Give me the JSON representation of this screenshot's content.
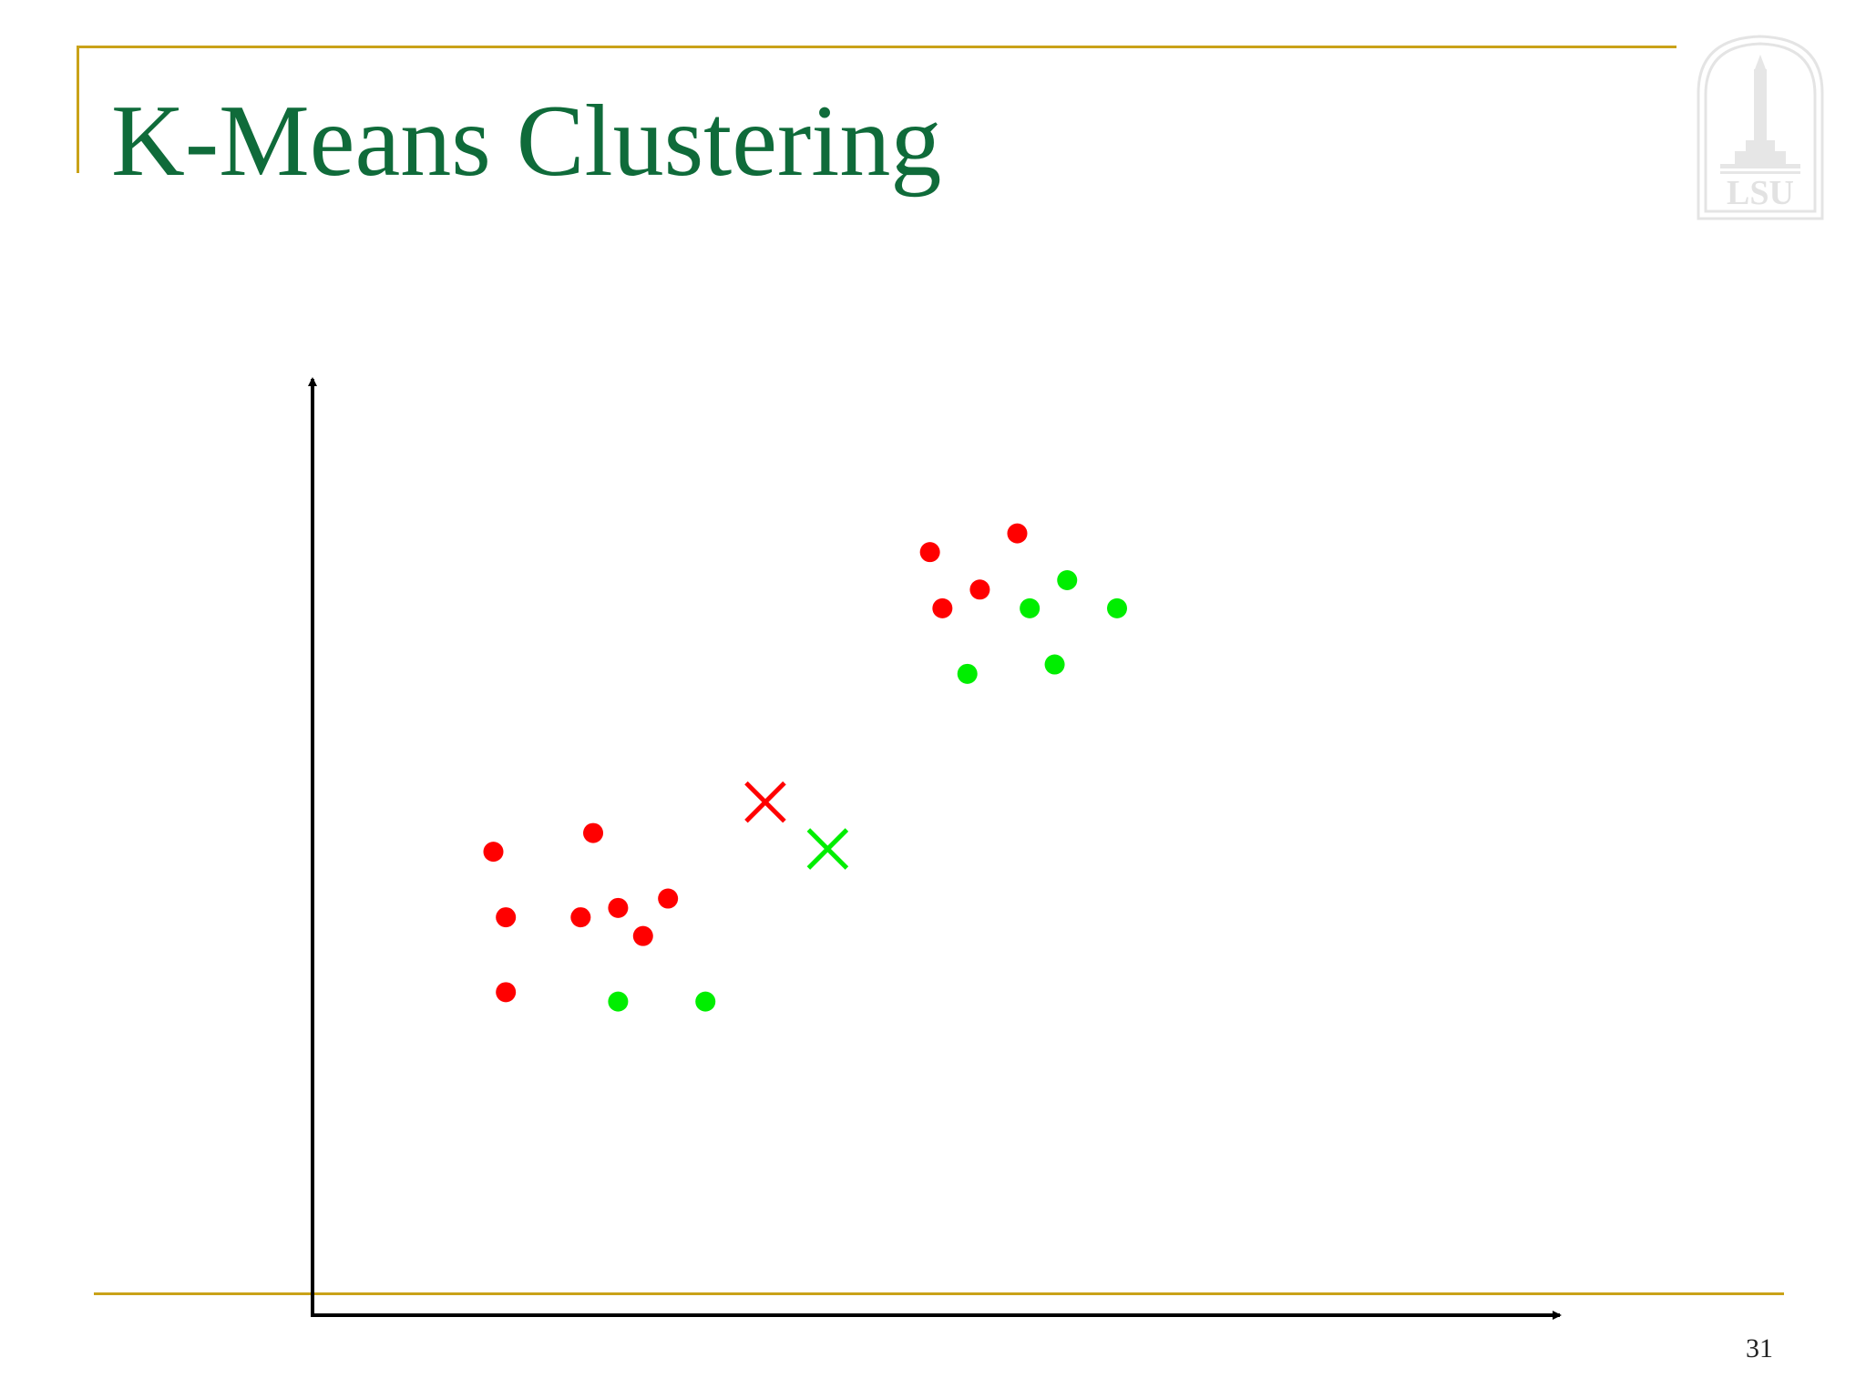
{
  "slide": {
    "title": "K-Means Clustering",
    "page_number": "31",
    "logo_text": "LSU"
  },
  "colors": {
    "title": "#0f6b3a",
    "rule": "#c9a218",
    "cluster_red": "#ff0000",
    "cluster_green": "#00ee00",
    "axis": "#000000"
  },
  "icons": {
    "logo": "lsu-tower-logo-icon",
    "centroid": "x-mark-icon",
    "point": "dot-icon"
  },
  "chart_data": {
    "type": "scatter",
    "title": "",
    "xlabel": "",
    "ylabel": "",
    "xlim": [
      0,
      100
    ],
    "ylim": [
      0,
      100
    ],
    "grid": false,
    "legend": "none",
    "ticks_shown": false,
    "series": [
      {
        "color": "#ff0000",
        "marker": "dot",
        "points": [
          {
            "x": 14.5,
            "y": 49.5
          },
          {
            "x": 22.5,
            "y": 51.5
          },
          {
            "x": 28.5,
            "y": 44.5
          },
          {
            "x": 24.5,
            "y": 43.5
          },
          {
            "x": 15.5,
            "y": 42.5
          },
          {
            "x": 21.5,
            "y": 42.5
          },
          {
            "x": 26.5,
            "y": 40.5
          },
          {
            "x": 15.5,
            "y": 34.5
          },
          {
            "x": 49.5,
            "y": 81.5
          },
          {
            "x": 56.5,
            "y": 83.5
          },
          {
            "x": 53.5,
            "y": 77.5
          },
          {
            "x": 50.5,
            "y": 75.5
          }
        ]
      },
      {
        "color": "#00ee00",
        "marker": "dot",
        "points": [
          {
            "x": 24.5,
            "y": 33.5
          },
          {
            "x": 31.5,
            "y": 33.5
          },
          {
            "x": 60.5,
            "y": 78.5
          },
          {
            "x": 57.5,
            "y": 75.5
          },
          {
            "x": 64.5,
            "y": 75.5
          },
          {
            "x": 52.5,
            "y": 68.5
          },
          {
            "x": 59.5,
            "y": 69.5
          }
        ]
      },
      {
        "color": "#ff0000",
        "marker": "x",
        "points": [
          {
            "x": 36.3,
            "y": 54.8
          }
        ]
      },
      {
        "color": "#00ee00",
        "marker": "x",
        "points": [
          {
            "x": 41.3,
            "y": 49.8
          }
        ]
      }
    ]
  }
}
